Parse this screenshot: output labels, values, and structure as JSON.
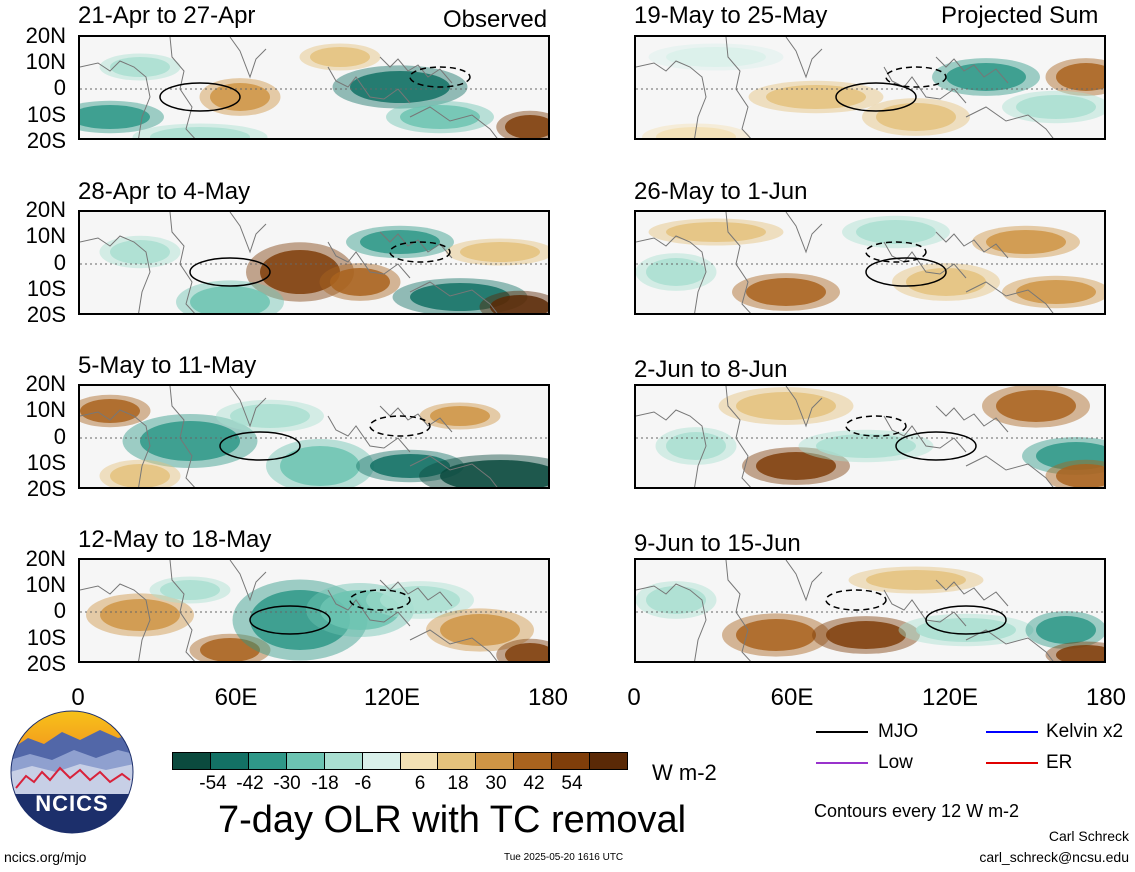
{
  "headers": {
    "observed": "Observed",
    "projected": "Projected Sum"
  },
  "panels": [
    {
      "title": "21-Apr to 27-Apr",
      "column": "observed"
    },
    {
      "title": "28-Apr to 4-May",
      "column": "observed"
    },
    {
      "title": "5-May to 11-May",
      "column": "observed"
    },
    {
      "title": "12-May to 18-May",
      "column": "observed"
    },
    {
      "title": "19-May to 25-May",
      "column": "projected"
    },
    {
      "title": "26-May to 1-Jun",
      "column": "projected"
    },
    {
      "title": "2-Jun to 8-Jun",
      "column": "projected"
    },
    {
      "title": "9-Jun to 15-Jun",
      "column": "projected"
    }
  ],
  "lat_labels": [
    "20N",
    "10N",
    "0",
    "10S",
    "20S"
  ],
  "lon_labels": [
    "0",
    "60E",
    "120E",
    "180"
  ],
  "colorbar": {
    "labels": [
      "-54",
      "-42",
      "-30",
      "-18",
      "-6",
      "6",
      "18",
      "30",
      "42",
      "54"
    ],
    "colors": [
      "#0b4a3e",
      "#137165",
      "#2f9888",
      "#6cc4b2",
      "#a9dfd1",
      "#d9f0ea",
      "#f6f6f6",
      "#f3e1b4",
      "#e4c27c",
      "#cf9545",
      "#a9631e",
      "#7f3e0a",
      "#5a2906"
    ],
    "units": "W m-2"
  },
  "legend": [
    {
      "label": "MJO",
      "color": "#000000"
    },
    {
      "label": "Kelvin x2",
      "color": "#0000ff"
    },
    {
      "label": "Low",
      "color": "#9933cc"
    },
    {
      "label": "ER",
      "color": "#e00000"
    }
  ],
  "main_title": "7-day OLR with TC removal",
  "contour_note": "Contours every 12 W m-2",
  "logo_text": "NCICS",
  "footer": {
    "left": "ncics.org/mjo",
    "center": "Tue 2025-05-20 1616 UTC",
    "author": "Carl Schreck",
    "email": "carl_schreck@ncsu.edu"
  }
}
